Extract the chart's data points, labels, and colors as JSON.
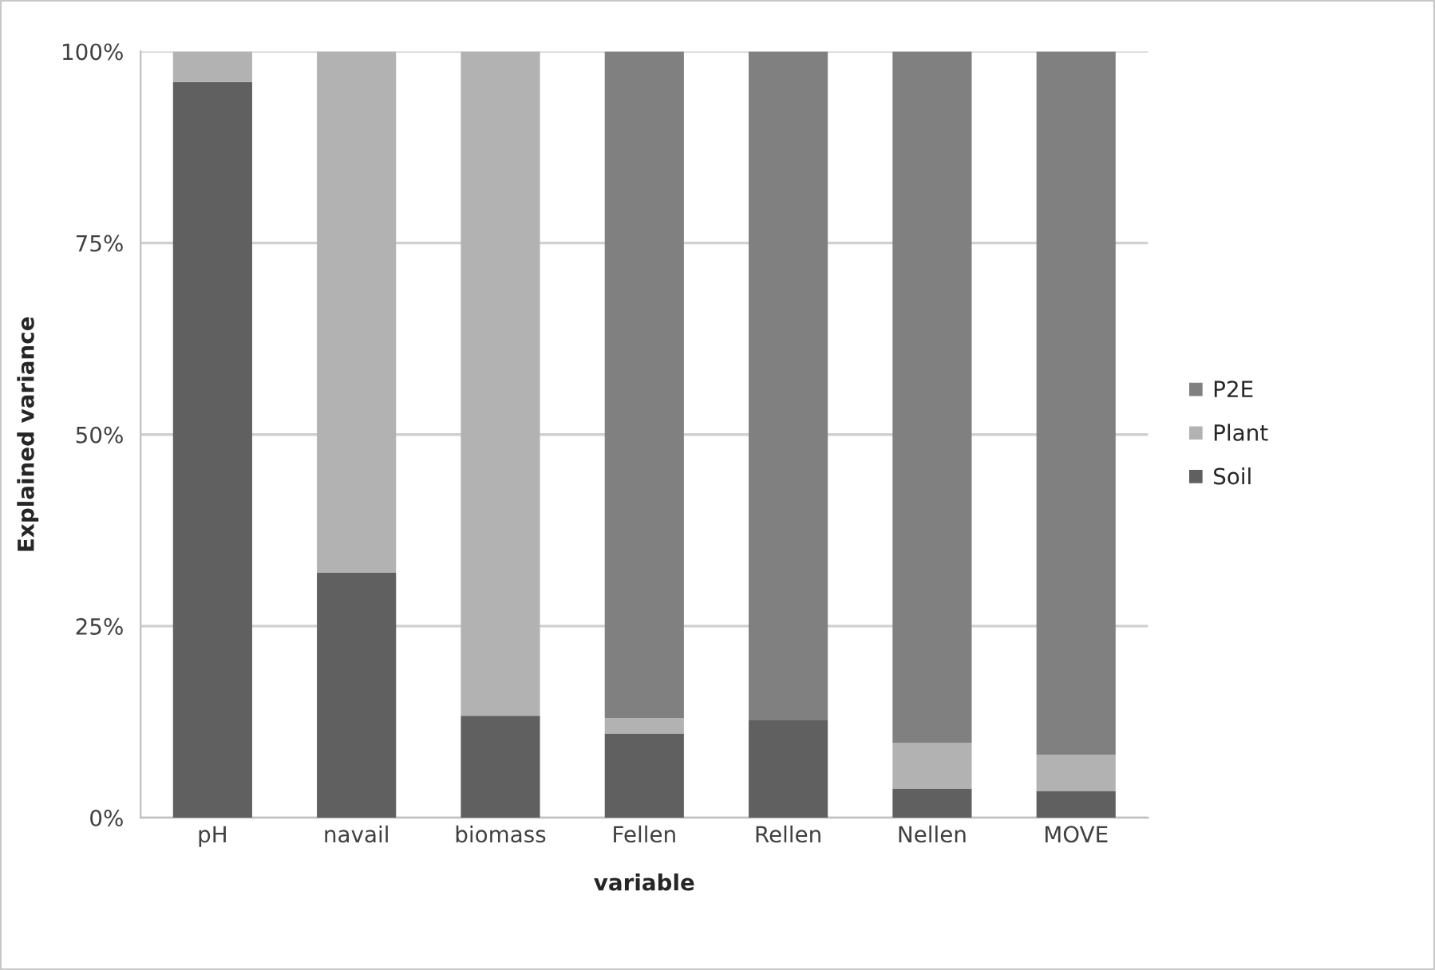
{
  "chart_data": {
    "type": "bar",
    "stacked": true,
    "xlabel": "variable",
    "ylabel": "Explained variance",
    "categories": [
      "pH",
      "navail",
      "biomass",
      "Fellen",
      "Rellen",
      "Nellen",
      "MOVE"
    ],
    "series": [
      {
        "name": "Soil",
        "color": "#606060",
        "values": [
          96,
          32,
          13.3,
          11,
          12.7,
          3.8,
          3.5
        ]
      },
      {
        "name": "Plant",
        "color": "#b2b2b2",
        "values": [
          4,
          68,
          86.7,
          2,
          null,
          6,
          4.7
        ]
      },
      {
        "name": "P2E",
        "color": "#808080",
        "values": [
          null,
          null,
          null,
          87,
          87.3,
          90.2,
          91.8
        ]
      }
    ],
    "ylim": [
      0,
      100
    ],
    "yticks": [
      {
        "value": 0,
        "label": "0%"
      },
      {
        "value": 25,
        "label": "25%"
      },
      {
        "value": 50,
        "label": "50%"
      },
      {
        "value": 75,
        "label": "75%"
      },
      {
        "value": 100,
        "label": "100%"
      }
    ],
    "grid": "y",
    "legend": "right"
  }
}
